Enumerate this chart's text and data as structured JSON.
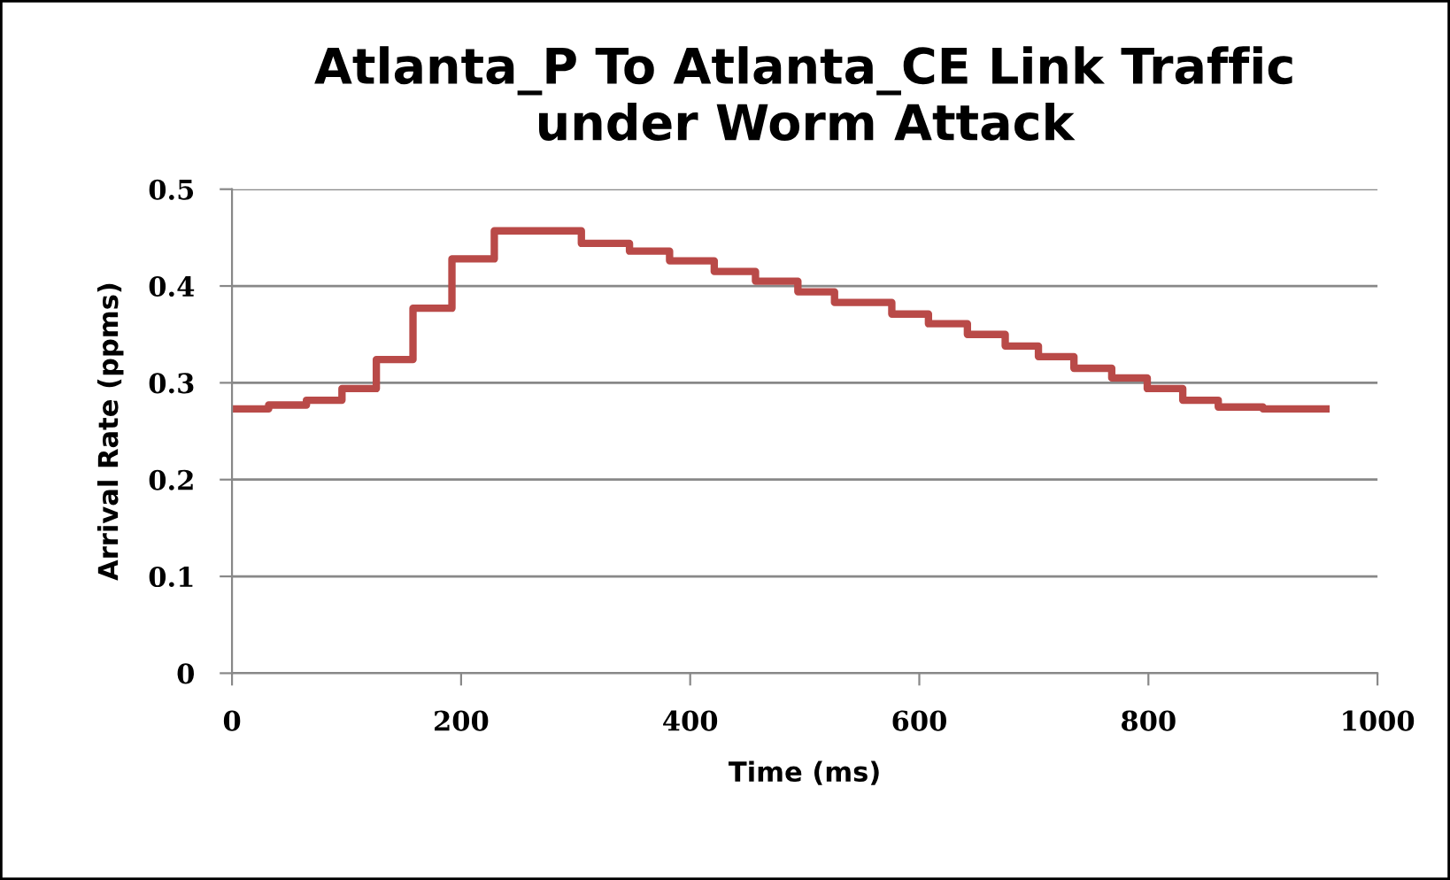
{
  "chart_data": {
    "type": "step",
    "title": "Atlanta_P To Atlanta_CE Link Traffic\nunder Worm Attack",
    "xlabel": "Time (ms)",
    "ylabel": "Arrival Rate (ppms)",
    "x": [
      0,
      32,
      65,
      96,
      126,
      158,
      192,
      229,
      305,
      347,
      382,
      421,
      457,
      494,
      526,
      576,
      608,
      642,
      675,
      704,
      735,
      768,
      799,
      830,
      861,
      900,
      955
    ],
    "series": [
      {
        "color": "#b94a48",
        "values": [
          0.273,
          0.277,
          0.282,
          0.294,
          0.324,
          0.377,
          0.428,
          0.457,
          0.444,
          0.436,
          0.426,
          0.415,
          0.405,
          0.394,
          0.383,
          0.371,
          0.361,
          0.35,
          0.338,
          0.327,
          0.315,
          0.305,
          0.294,
          0.282,
          0.275,
          0.273,
          0.273
        ]
      }
    ],
    "xlim": [
      0,
      1000
    ],
    "xticks": [
      0,
      200,
      400,
      600,
      800,
      1000
    ],
    "ylim": [
      0,
      0.5
    ],
    "yticks": [
      0,
      0.1,
      0.2,
      0.3,
      0.4,
      0.5
    ],
    "grid": "y",
    "legend": false
  }
}
